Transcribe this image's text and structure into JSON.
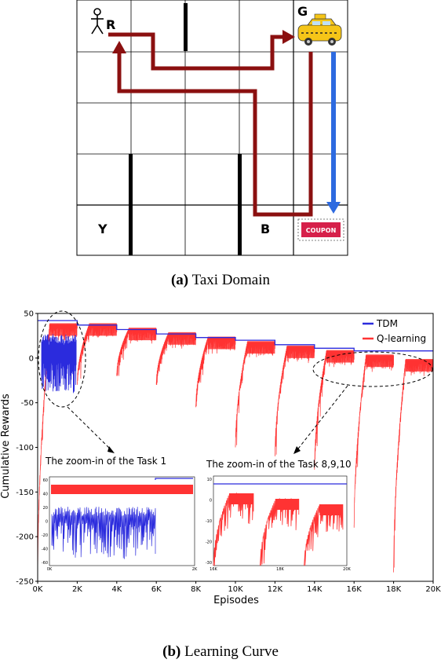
{
  "taxi": {
    "caption_label": "(a)",
    "caption_text": "Taxi Domain",
    "labels": {
      "R": "R",
      "G": "G",
      "Y": "Y",
      "B": "B"
    },
    "coupon": "COUPON"
  },
  "colors": {
    "route": "#8b1010",
    "tdm": "#2b2bdd",
    "q": "#ff3333",
    "coupon": "#d6204a",
    "blue_arrow": "#2d6ae0"
  },
  "chart": {
    "caption_label": "(b)",
    "caption_text": "Learning Curve",
    "ylabel": "Cumulative Rewards",
    "xlabel": "Episodes",
    "annotation_1": "The zoom-in of the Task 1",
    "annotation_2": "The zoom-in of the Task 8,9,10"
  },
  "chart_data": {
    "type": "line",
    "xlabel": "Episodes",
    "ylabel": "Cumulative Rewards",
    "xlim": [
      0,
      20000
    ],
    "ylim": [
      -250,
      50
    ],
    "x_ticks": [
      "0K",
      "2K",
      "4K",
      "6K",
      "8K",
      "10K",
      "12K",
      "14K",
      "16K",
      "18K",
      "20K"
    ],
    "y_ticks": [
      "50",
      "0",
      "-50",
      "-100",
      "-150",
      "-200",
      "-250"
    ],
    "legend_position": "top-right",
    "series": [
      {
        "name": "TDM",
        "color": "#2b2bdd",
        "steps": [
          [
            0,
            42
          ],
          [
            2000,
            37
          ],
          [
            4000,
            32
          ],
          [
            6000,
            27
          ],
          [
            8000,
            23
          ],
          [
            10000,
            20
          ],
          [
            12000,
            15
          ],
          [
            14000,
            11
          ],
          [
            16000,
            8
          ],
          [
            20000,
            8
          ]
        ]
      },
      {
        "name": "Q-learning",
        "color": "#ff3333",
        "tasks": [
          {
            "start": 0,
            "end": 2000,
            "plateau": 35,
            "dip": -245
          },
          {
            "start": 2000,
            "end": 4000,
            "plateau": 35,
            "dip": -30
          },
          {
            "start": 4000,
            "end": 6000,
            "plateau": 30,
            "dip": -20
          },
          {
            "start": 6000,
            "end": 8000,
            "plateau": 25,
            "dip": -30
          },
          {
            "start": 8000,
            "end": 10000,
            "plateau": 20,
            "dip": -55
          },
          {
            "start": 10000,
            "end": 12000,
            "plateau": 15,
            "dip": -100
          },
          {
            "start": 12000,
            "end": 14000,
            "plateau": 10,
            "dip": -110
          },
          {
            "start": 14000,
            "end": 16000,
            "plateau": 5,
            "dip": -125
          },
          {
            "start": 16000,
            "end": 18000,
            "plateau": 0,
            "dip": -190
          },
          {
            "start": 18000,
            "end": 20000,
            "plateau": -5,
            "dip": -240
          }
        ]
      }
    ],
    "inset_1": {
      "x_ticks": [
        "0K",
        "2K"
      ],
      "y_ticks": [
        "60",
        "40",
        "20",
        "0",
        "-20",
        "-40",
        "-60"
      ]
    },
    "inset_2": {
      "x_ticks": [
        "16K",
        "18K",
        "20K"
      ],
      "y_ticks": [
        "10",
        "0",
        "-10",
        "-20",
        "-30"
      ]
    }
  }
}
